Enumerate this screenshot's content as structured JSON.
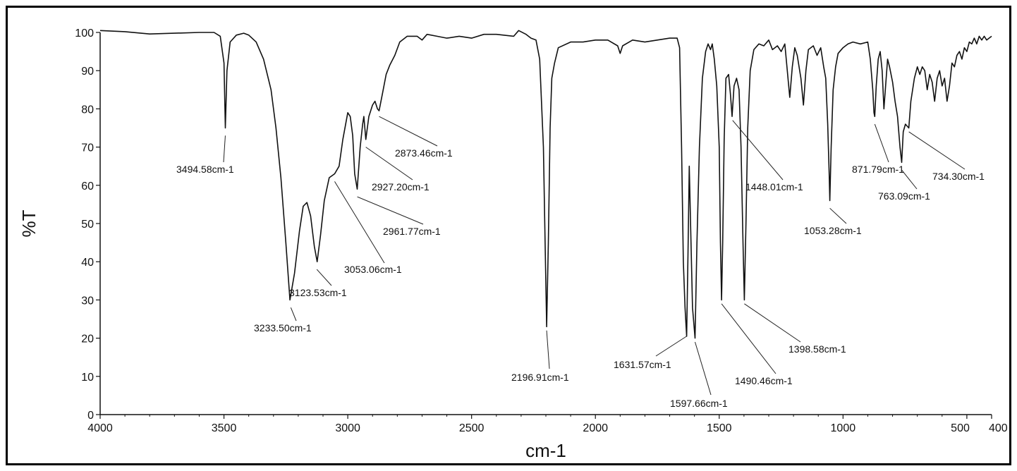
{
  "chart_data": {
    "type": "line",
    "xlabel": "cm-1",
    "ylabel": "%T",
    "xlim": [
      4000,
      400
    ],
    "ylim": [
      0,
      100
    ],
    "x_ticks": [
      {
        "value": 4000,
        "label": "4000"
      },
      {
        "value": 3500,
        "label": "3500"
      },
      {
        "value": 3000,
        "label": "3000"
      },
      {
        "value": 2500,
        "label": "2500"
      },
      {
        "value": 2000,
        "label": "2000"
      },
      {
        "value": 1500,
        "label": "1500"
      },
      {
        "value": 1000,
        "label": "1000"
      },
      {
        "value": 500,
        "label": "500"
      },
      {
        "value": 400,
        "label": "400"
      }
    ],
    "y_ticks": [
      0,
      10,
      20,
      30,
      40,
      50,
      60,
      70,
      80,
      90,
      100
    ],
    "grid": false,
    "series": [
      {
        "points": [
          [
            4000,
            100.5
          ],
          [
            3900,
            100.2
          ],
          [
            3800,
            99.6
          ],
          [
            3700,
            99.8
          ],
          [
            3600,
            100
          ],
          [
            3540,
            100
          ],
          [
            3515,
            99
          ],
          [
            3500,
            92
          ],
          [
            3494.58,
            75
          ],
          [
            3488,
            90
          ],
          [
            3475,
            97.5
          ],
          [
            3450,
            99.3
          ],
          [
            3420,
            99.8
          ],
          [
            3400,
            99.3
          ],
          [
            3370,
            97.5
          ],
          [
            3340,
            93
          ],
          [
            3310,
            85
          ],
          [
            3290,
            75
          ],
          [
            3270,
            62
          ],
          [
            3250,
            45
          ],
          [
            3233.5,
            30
          ],
          [
            3215,
            37
          ],
          [
            3195,
            48
          ],
          [
            3180,
            54.5
          ],
          [
            3165,
            55.5
          ],
          [
            3150,
            52
          ],
          [
            3135,
            44
          ],
          [
            3123.53,
            40
          ],
          [
            3110,
            47
          ],
          [
            3095,
            56
          ],
          [
            3075,
            62
          ],
          [
            3053.06,
            63
          ],
          [
            3035,
            65
          ],
          [
            3020,
            72
          ],
          [
            3010,
            75.5
          ],
          [
            3000,
            79
          ],
          [
            2990,
            78
          ],
          [
            2980,
            73
          ],
          [
            2972,
            63
          ],
          [
            2961.77,
            59
          ],
          [
            2950,
            70
          ],
          [
            2940,
            76
          ],
          [
            2935,
            78
          ],
          [
            2927.2,
            72
          ],
          [
            2915,
            78
          ],
          [
            2900,
            81
          ],
          [
            2890,
            82
          ],
          [
            2880,
            80
          ],
          [
            2873.46,
            79.5
          ],
          [
            2860,
            84
          ],
          [
            2845,
            89
          ],
          [
            2830,
            91.5
          ],
          [
            2810,
            94
          ],
          [
            2790,
            97.5
          ],
          [
            2760,
            99
          ],
          [
            2720,
            99
          ],
          [
            2700,
            98
          ],
          [
            2680,
            99.5
          ],
          [
            2640,
            99
          ],
          [
            2600,
            98.5
          ],
          [
            2550,
            99
          ],
          [
            2500,
            98.5
          ],
          [
            2450,
            99.5
          ],
          [
            2400,
            99.5
          ],
          [
            2330,
            99
          ],
          [
            2310,
            100.5
          ],
          [
            2280,
            99.5
          ],
          [
            2260,
            98.5
          ],
          [
            2240,
            98
          ],
          [
            2225,
            93
          ],
          [
            2210,
            70
          ],
          [
            2203,
            45
          ],
          [
            2196.91,
            23
          ],
          [
            2190,
            45
          ],
          [
            2183,
            75
          ],
          [
            2176,
            88
          ],
          [
            2165,
            92
          ],
          [
            2150,
            96
          ],
          [
            2100,
            97.5
          ],
          [
            2050,
            97.5
          ],
          [
            2000,
            98
          ],
          [
            1950,
            98
          ],
          [
            1910,
            96.5
          ],
          [
            1900,
            94.5
          ],
          [
            1890,
            96.5
          ],
          [
            1850,
            98
          ],
          [
            1800,
            97.5
          ],
          [
            1750,
            98
          ],
          [
            1700,
            98.5
          ],
          [
            1670,
            98.5
          ],
          [
            1660,
            96
          ],
          [
            1652,
            70
          ],
          [
            1645,
            40
          ],
          [
            1638,
            28
          ],
          [
            1631.57,
            20.5
          ],
          [
            1626,
            42
          ],
          [
            1621,
            65
          ],
          [
            1615,
            48
          ],
          [
            1608,
            28
          ],
          [
            1597.66,
            20
          ],
          [
            1590,
            45
          ],
          [
            1580,
            70
          ],
          [
            1568,
            88
          ],
          [
            1555,
            95
          ],
          [
            1545,
            97
          ],
          [
            1535,
            95.5
          ],
          [
            1528,
            97
          ],
          [
            1520,
            93
          ],
          [
            1510,
            86
          ],
          [
            1500,
            70
          ],
          [
            1495,
            45
          ],
          [
            1490.46,
            30
          ],
          [
            1486,
            45
          ],
          [
            1480,
            72
          ],
          [
            1473,
            88
          ],
          [
            1462,
            89
          ],
          [
            1455,
            84
          ],
          [
            1448.01,
            78
          ],
          [
            1440,
            86
          ],
          [
            1430,
            88
          ],
          [
            1420,
            85
          ],
          [
            1412,
            70
          ],
          [
            1404,
            45
          ],
          [
            1398.58,
            30
          ],
          [
            1392,
            50
          ],
          [
            1385,
            75
          ],
          [
            1375,
            90
          ],
          [
            1360,
            95.5
          ],
          [
            1340,
            97
          ],
          [
            1320,
            96.5
          ],
          [
            1300,
            98
          ],
          [
            1285,
            95.5
          ],
          [
            1265,
            96.5
          ],
          [
            1250,
            95
          ],
          [
            1235,
            97
          ],
          [
            1225,
            90
          ],
          [
            1215,
            83
          ],
          [
            1205,
            91
          ],
          [
            1195,
            96
          ],
          [
            1185,
            94
          ],
          [
            1170,
            88
          ],
          [
            1160,
            81
          ],
          [
            1150,
            90
          ],
          [
            1140,
            95.5
          ],
          [
            1120,
            96.5
          ],
          [
            1105,
            94
          ],
          [
            1090,
            96
          ],
          [
            1078,
            91
          ],
          [
            1070,
            88
          ],
          [
            1062,
            76
          ],
          [
            1056,
            63
          ],
          [
            1053.28,
            56
          ],
          [
            1048,
            70
          ],
          [
            1040,
            85
          ],
          [
            1030,
            91
          ],
          [
            1020,
            94.5
          ],
          [
            1000,
            96
          ],
          [
            980,
            97
          ],
          [
            960,
            97.5
          ],
          [
            930,
            97
          ],
          [
            900,
            97.5
          ],
          [
            890,
            93
          ],
          [
            880,
            85
          ],
          [
            875,
            79
          ],
          [
            871.79,
            78
          ],
          [
            866,
            86
          ],
          [
            858,
            93
          ],
          [
            850,
            95
          ],
          [
            842,
            90
          ],
          [
            835,
            80
          ],
          [
            828,
            86
          ],
          [
            820,
            93
          ],
          [
            812,
            91
          ],
          [
            800,
            87
          ],
          [
            790,
            82
          ],
          [
            780,
            78
          ],
          [
            770,
            70
          ],
          [
            763.09,
            66
          ],
          [
            757,
            74
          ],
          [
            748,
            76
          ],
          [
            734.3,
            75
          ],
          [
            726,
            82
          ],
          [
            712,
            88
          ],
          [
            700,
            91
          ],
          [
            690,
            89
          ],
          [
            680,
            91
          ],
          [
            670,
            90
          ],
          [
            660,
            85
          ],
          [
            650,
            89
          ],
          [
            640,
            87
          ],
          [
            630,
            82
          ],
          [
            620,
            88
          ],
          [
            610,
            90
          ],
          [
            600,
            86
          ],
          [
            590,
            88
          ],
          [
            580,
            82
          ],
          [
            570,
            86
          ],
          [
            560,
            92
          ],
          [
            550,
            91
          ],
          [
            540,
            94
          ],
          [
            530,
            95
          ],
          [
            520,
            93
          ],
          [
            510,
            96
          ],
          [
            500,
            95
          ],
          [
            490,
            97.5
          ],
          [
            480,
            97
          ],
          [
            470,
            98.5
          ],
          [
            460,
            97
          ],
          [
            450,
            99
          ],
          [
            440,
            98
          ],
          [
            430,
            99
          ],
          [
            420,
            98
          ],
          [
            400,
            99
          ]
        ]
      }
    ],
    "annotations": [
      {
        "text": "3494.58cm-1",
        "x": 3494.58,
        "y": 75
      },
      {
        "text": "3233.50cm-1",
        "x": 3233.5,
        "y": 30
      },
      {
        "text": "3123.53cm-1",
        "x": 3123.53,
        "y": 40
      },
      {
        "text": "3053.06cm-1",
        "x": 3053.06,
        "y": 63
      },
      {
        "text": "2961.77cm-1",
        "x": 2961.77,
        "y": 59
      },
      {
        "text": "2927.20cm-1",
        "x": 2927.2,
        "y": 72
      },
      {
        "text": "2873.46cm-1",
        "x": 2873.46,
        "y": 79.5
      },
      {
        "text": "2196.91cm-1",
        "x": 2196.91,
        "y": 23
      },
      {
        "text": "1631.57cm-1",
        "x": 1631.57,
        "y": 20.5
      },
      {
        "text": "1597.66cm-1",
        "x": 1597.66,
        "y": 20
      },
      {
        "text": "1490.46cm-1",
        "x": 1490.46,
        "y": 30
      },
      {
        "text": "1448.01cm-1",
        "x": 1448.01,
        "y": 78
      },
      {
        "text": "1398.58cm-1",
        "x": 1398.58,
        "y": 30
      },
      {
        "text": "1053.28cm-1",
        "x": 1053.28,
        "y": 56
      },
      {
        "text": "871.79cm-1",
        "x": 871.79,
        "y": 78
      },
      {
        "text": "763.09cm-1",
        "x": 763.09,
        "y": 66
      },
      {
        "text": "734.30cm-1",
        "x": 734.3,
        "y": 75
      }
    ]
  }
}
